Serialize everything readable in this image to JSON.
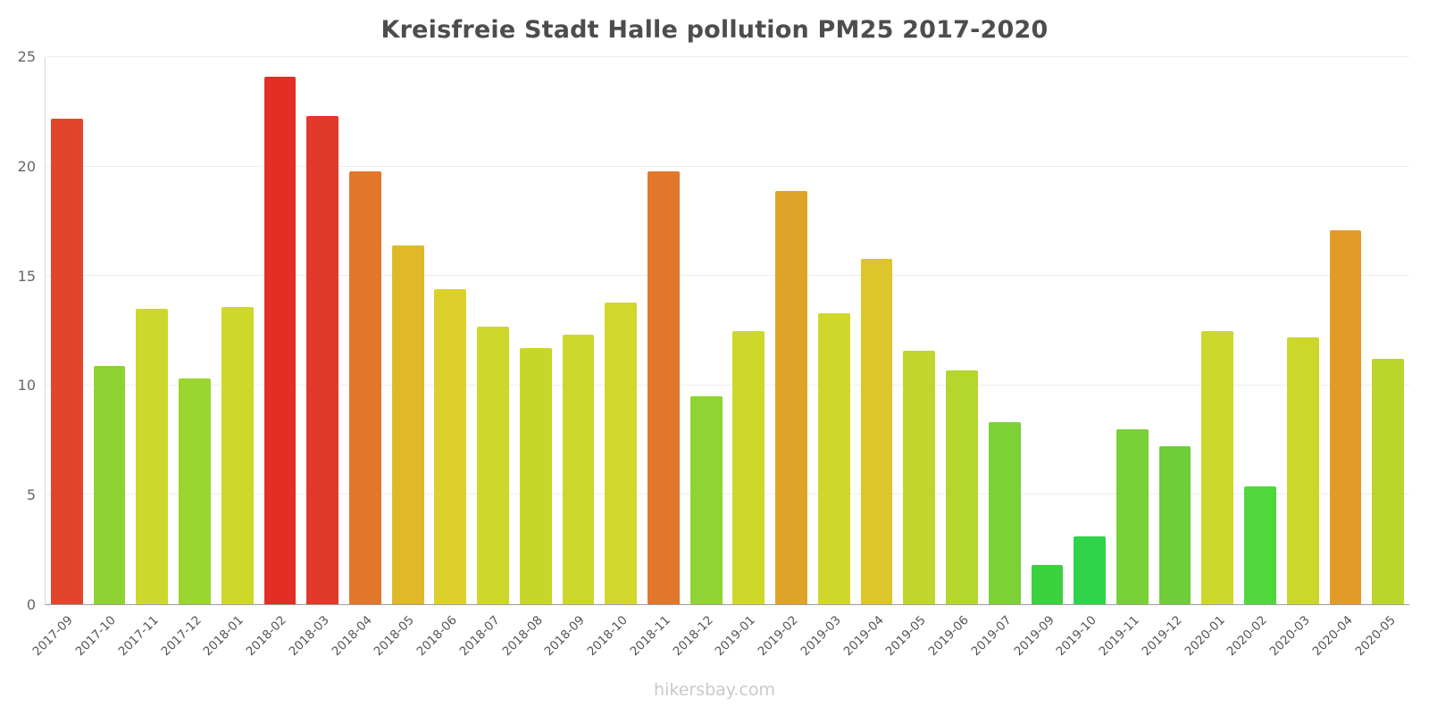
{
  "watermark": "hikersbay.com",
  "chart_data": {
    "type": "bar",
    "title": "Kreisfreie Stadt Halle pollution PM25 2017-2020",
    "xlabel": "",
    "ylabel": "",
    "ylim": [
      0,
      25
    ],
    "yticks": [
      0,
      5,
      10,
      15,
      20,
      25
    ],
    "grid": "horizontal",
    "legend": "none",
    "categories": [
      "2017-09",
      "2017-10",
      "2017-11",
      "2017-12",
      "2018-01",
      "2018-02",
      "2018-03",
      "2018-04",
      "2018-05",
      "2018-06",
      "2018-07",
      "2018-08",
      "2018-09",
      "2018-10",
      "2018-11",
      "2018-12",
      "2019-01",
      "2019-02",
      "2019-03",
      "2019-04",
      "2019-05",
      "2019-06",
      "2019-07",
      "2019-09",
      "2019-10",
      "2019-11",
      "2019-12",
      "2020-01",
      "2020-02",
      "2020-03",
      "2020-04",
      "2020-05"
    ],
    "values": [
      22.2,
      10.9,
      13.5,
      10.3,
      13.6,
      24.1,
      22.3,
      19.8,
      16.4,
      14.4,
      12.7,
      11.7,
      12.3,
      13.8,
      19.8,
      9.5,
      12.5,
      18.9,
      13.3,
      15.8,
      11.6,
      10.7,
      8.3,
      1.8,
      3.1,
      8.0,
      7.2,
      12.5,
      5.4,
      12.2,
      17.1,
      11.2
    ],
    "colors": [
      "#e1462c",
      "#8ed333",
      "#ccd82b",
      "#9bd530",
      "#cdd82b",
      "#e22e24",
      "#e1392a",
      "#e2762b",
      "#e0b92a",
      "#ddd02b",
      "#cfd72b",
      "#c6d72a",
      "#cbd72b",
      "#d2d72b",
      "#e2772b",
      "#8fd432",
      "#cdd82b",
      "#dfa32a",
      "#d0d72b",
      "#ddc52a",
      "#c0d62c",
      "#b4d62d",
      "#7bd135",
      "#3bd13f",
      "#2fd44b",
      "#79d036",
      "#6ecd39",
      "#ccd82b",
      "#4fd73c",
      "#cbd72b",
      "#e29a29",
      "#bad62c"
    ]
  }
}
